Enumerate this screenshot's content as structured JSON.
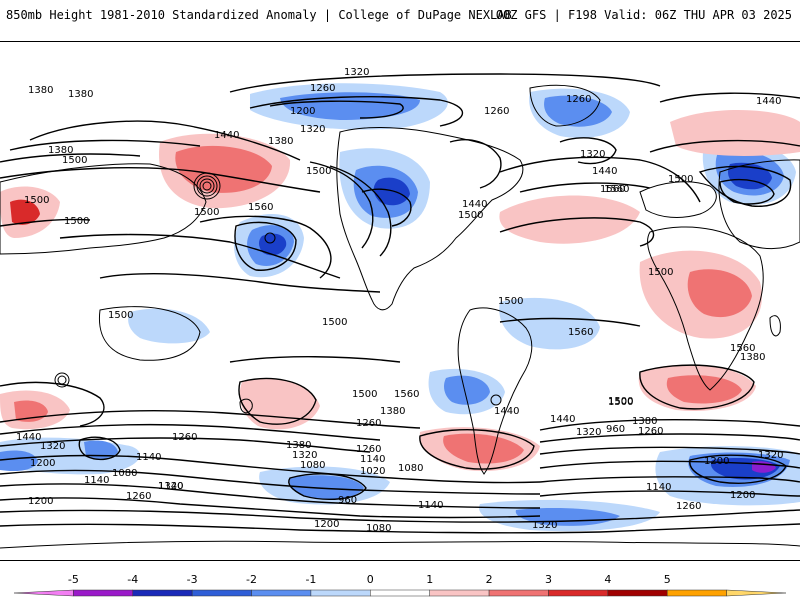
{
  "header": {
    "title": "850mb Height 1981-2010 Standardized Anomaly | College of DuPage NEXLAB",
    "run_info": "00Z GFS | F198 Valid: 06Z THU APR 03 2025"
  },
  "contour_labels": [
    "1380",
    "1380",
    "1320",
    "1260",
    "1200",
    "1260",
    "1260",
    "1440",
    "1440",
    "1500",
    "1380",
    "1320",
    "1380",
    "1500",
    "1500",
    "1560",
    "1500",
    "1500",
    "1560",
    "1440",
    "1500",
    "1440",
    "1320",
    "1500",
    "1560",
    "1500",
    "1500",
    "1500",
    "1560",
    "1500",
    "1500",
    "1560",
    "1500",
    "1440",
    "1440",
    "1380",
    "1260",
    "1320",
    "1200",
    "1380",
    "1560",
    "1500",
    "1380",
    "1260",
    "1320",
    "1260",
    "1200",
    "1140",
    "1080",
    "1140",
    "1200",
    "1260",
    "1320",
    "960",
    "1140",
    "1080",
    "1020",
    "1440",
    "1380",
    "1320",
    "1260",
    "1140",
    "1080",
    "1320",
    "960",
    "1260",
    "1200",
    "1320",
    "1140",
    "1080",
    "1200",
    "1140",
    "1320"
  ],
  "colorbar": {
    "ticks": [
      "-5",
      "-4",
      "-3",
      "-2",
      "-1",
      "0",
      "1",
      "2",
      "3",
      "4",
      "5"
    ],
    "colors": [
      "#f27ef2",
      "#9a19c9",
      "#1a2ab8",
      "#2f5ed7",
      "#5b8ef0",
      "#bcd8fb",
      "#ffffff",
      "#f9c4c4",
      "#ef7373",
      "#d92a2a",
      "#a00000",
      "#ffa200",
      "#ffd76a"
    ]
  },
  "anomaly_colors": {
    "neg1": "#bcd8fb",
    "neg2": "#5b8ef0",
    "neg3": "#1a3fc9",
    "neg4": "#8a1fd0",
    "pos1": "#f9c4c4",
    "pos2": "#ef7373",
    "pos3": "#d92a2a"
  }
}
